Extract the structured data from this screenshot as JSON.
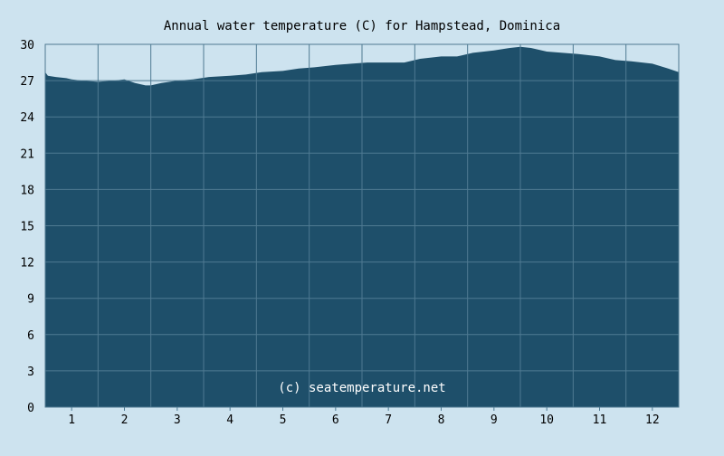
{
  "chart_data": {
    "type": "area",
    "title": "Annual water temperature (C) for Hampstead, Dominica",
    "xlabel": "",
    "ylabel": "",
    "ylim": [
      0,
      30
    ],
    "yticks": [
      "0",
      "3",
      "6",
      "9",
      "12",
      "15",
      "18",
      "21",
      "24",
      "27",
      "30"
    ],
    "xlim": [
      0.5,
      12.5
    ],
    "xticks": [
      "1",
      "2",
      "3",
      "4",
      "5",
      "6",
      "7",
      "8",
      "9",
      "10",
      "11",
      "12"
    ],
    "grid": true,
    "watermark": "(c) seatemperature.net",
    "colors": {
      "background": "#cde3ef",
      "plot_fill": "#1e4f6a",
      "grid": "#4f7a92",
      "text": "#000000"
    },
    "series": [
      {
        "x": [
          0.5,
          0.55,
          0.7,
          0.9,
          1.0,
          1.2,
          1.5,
          1.8,
          2.0,
          2.2,
          2.4,
          2.5,
          2.7,
          3.0,
          3.3,
          3.6,
          4.0,
          4.3,
          4.6,
          5.0,
          5.3,
          5.6,
          6.0,
          6.3,
          6.6,
          7.0,
          7.3,
          7.6,
          8.0,
          8.3,
          8.6,
          9.0,
          9.3,
          9.5,
          9.7,
          10.0,
          10.3,
          10.6,
          11.0,
          11.3,
          11.6,
          12.0,
          12.3,
          12.5
        ],
        "values": [
          27.7,
          27.4,
          27.3,
          27.2,
          27.1,
          27.0,
          26.9,
          27.0,
          27.1,
          26.8,
          26.6,
          26.6,
          26.8,
          27.0,
          27.1,
          27.3,
          27.4,
          27.5,
          27.7,
          27.8,
          28.0,
          28.1,
          28.3,
          28.4,
          28.5,
          28.5,
          28.5,
          28.8,
          29.0,
          29.0,
          29.3,
          29.5,
          29.7,
          29.8,
          29.7,
          29.4,
          29.3,
          29.2,
          29.0,
          28.7,
          28.6,
          28.4,
          28.0,
          27.7
        ]
      }
    ]
  }
}
